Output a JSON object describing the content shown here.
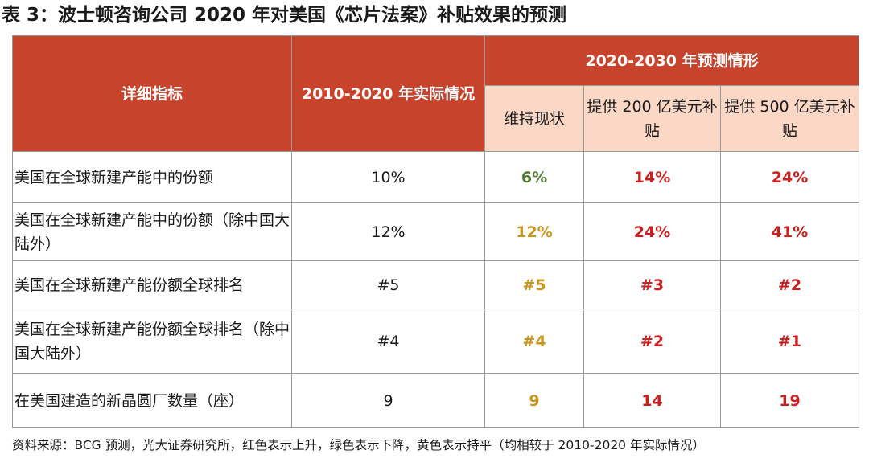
{
  "title": "表 3：波士顿咨询公司 2020 年对美国《芯片法案》补贴效果的预测",
  "colors": {
    "header_bg": "#c8432b",
    "subheader_bg": "#fbd7c6",
    "up_red": "#cc1f1f",
    "down_green": "#4d7a2e",
    "flat_yellow": "#c9961e"
  },
  "table": {
    "headers": {
      "indicator": "详细指标",
      "actual": "2010-2020 年实际情况",
      "forecast": "2020-2030 年预测情形",
      "scenarios": [
        "维持现状",
        "提供 200 亿美元补贴",
        "提供 500 亿美元补贴"
      ]
    },
    "rows": [
      {
        "indicator": "美国在全球新建产能中的份额",
        "actual": "10%",
        "status_quo": "6%",
        "status_quo_trend": "down",
        "sub200": "14%",
        "sub500": "24%"
      },
      {
        "indicator": "美国在全球新建产能中的份额（除中国大陆外）",
        "actual": "12%",
        "status_quo": "12%",
        "status_quo_trend": "flat",
        "sub200": "24%",
        "sub500": "41%"
      },
      {
        "indicator": "美国在全球新建产能份额全球排名",
        "actual": "#5",
        "status_quo": "#5",
        "status_quo_trend": "flat",
        "sub200": "#3",
        "sub500": "#2"
      },
      {
        "indicator": "美国在全球新建产能份额全球排名（除中国大陆外）",
        "actual": "#4",
        "status_quo": "#4",
        "status_quo_trend": "flat",
        "sub200": "#2",
        "sub500": "#1"
      },
      {
        "indicator": "在美国建造的新晶圆厂数量（座）",
        "actual": "9",
        "status_quo": "9",
        "status_quo_trend": "flat",
        "sub200": "14",
        "sub500": "19"
      }
    ]
  },
  "source": "资料来源：BCG 预测，光大证券研究所，红色表示上升，绿色表示下降，黄色表示持平（均相较于 2010-2020 年实际情况）"
}
